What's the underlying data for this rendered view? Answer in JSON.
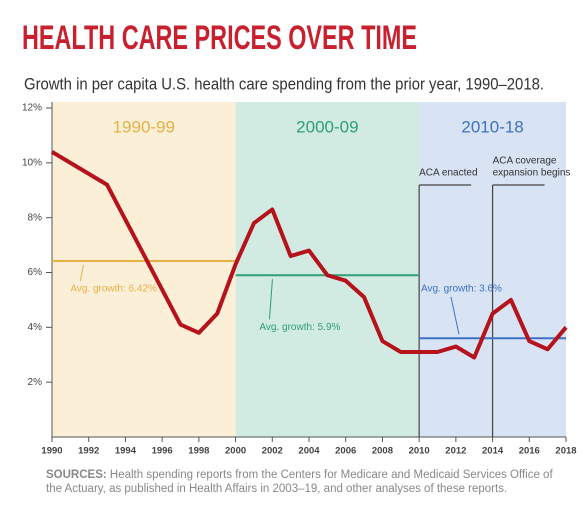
{
  "chart_data": {
    "type": "line",
    "title": "HEALTH CARE PRICES OVER TIME",
    "subtitle": "Growth in per capita U.S. health care spending from the prior year, 1990–2018.",
    "x": [
      1990,
      1993,
      1997,
      1998,
      1999,
      2000,
      2001,
      2002,
      2003,
      2004,
      2005,
      2006,
      2007,
      2008,
      2009,
      2010,
      2011,
      2012,
      2013,
      2014,
      2015,
      2016,
      2017,
      2018
    ],
    "values": [
      10.4,
      9.2,
      4.1,
      3.8,
      4.5,
      6.3,
      7.8,
      8.3,
      6.6,
      6.8,
      5.9,
      5.7,
      5.1,
      3.5,
      3.1,
      3.1,
      3.1,
      3.3,
      2.9,
      4.5,
      5.0,
      3.5,
      3.2,
      4.0
    ],
    "color": "#b5121b",
    "xlim": [
      1990,
      2018
    ],
    "xticks": [
      1990,
      1992,
      1994,
      1996,
      1998,
      2000,
      2002,
      2004,
      2006,
      2008,
      2010,
      2012,
      2014,
      2016,
      2018
    ],
    "ylim": [
      0,
      12
    ],
    "yticks": [
      {
        "value": 2,
        "label": "2%"
      },
      {
        "value": 4,
        "label": "4%"
      },
      {
        "value": 6,
        "label": "6%"
      },
      {
        "value": 8,
        "label": "8%"
      },
      {
        "value": 10,
        "label": "10%"
      },
      {
        "value": 12,
        "label": "12%"
      }
    ],
    "periods": [
      {
        "label": "1990-99",
        "start": 1990,
        "end": 2000,
        "fill": "#fcefd8",
        "color": "#e3b245",
        "avg": 6.42,
        "avg_label": "Avg. growth: 6.42%"
      },
      {
        "label": "2000-09",
        "start": 2000,
        "end": 2010,
        "fill": "#d2ebe2",
        "color": "#2e9e74",
        "avg": 5.9,
        "avg_label": "Avg. growth: 5.9%"
      },
      {
        "label": "2010-18",
        "start": 2010,
        "end": 2018,
        "fill": "#d8e3f3",
        "color": "#3d72c4",
        "avg": 3.6,
        "avg_label": "Avg. growth: 3.6%"
      }
    ],
    "events": [
      {
        "x": 2010,
        "label": [
          "ACA enacted"
        ]
      },
      {
        "x": 2014,
        "label": [
          "ACA coverage",
          "expansion begins"
        ]
      }
    ],
    "sources": {
      "label": "SOURCES:",
      "text": " Health spending reports from the Centers for Medicare and Medicaid Services Office of the Actuary, as published in Health Affairs in 2003–19, and other analyses of these reports."
    }
  }
}
